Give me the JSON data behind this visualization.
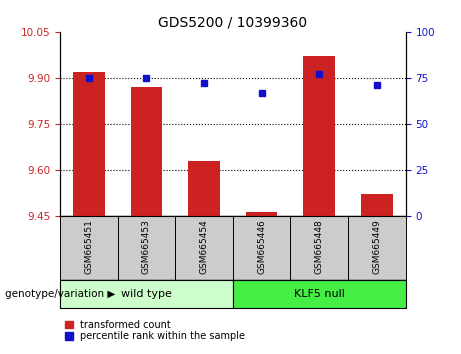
{
  "title": "GDS5200 / 10399360",
  "samples": [
    "GSM665451",
    "GSM665453",
    "GSM665454",
    "GSM665446",
    "GSM665448",
    "GSM665449"
  ],
  "group_labels": [
    "wild type",
    "KLF5 null"
  ],
  "bar_values": [
    9.92,
    9.87,
    9.63,
    9.462,
    9.97,
    9.52
  ],
  "percentile_values": [
    75,
    75,
    72,
    67,
    77,
    71
  ],
  "bar_base": 9.45,
  "ylim_left": [
    9.45,
    10.05
  ],
  "ylim_right": [
    0,
    100
  ],
  "yticks_left": [
    9.45,
    9.6,
    9.75,
    9.9,
    10.05
  ],
  "yticks_right": [
    0,
    25,
    50,
    75,
    100
  ],
  "bar_color": "#cc2222",
  "dot_color": "#1111cc",
  "wild_type_color": "#ccffcc",
  "klf5_color": "#44ee44",
  "label_bg_color": "#cccccc",
  "legend_bar_label": "transformed count",
  "legend_dot_label": "percentile rank within the sample",
  "genotype_label": "genotype/variation"
}
